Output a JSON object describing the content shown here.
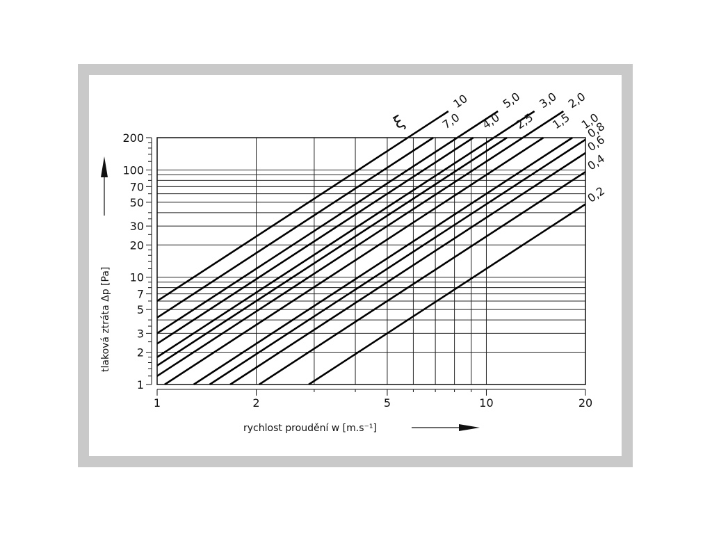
{
  "chart_data": {
    "type": "line",
    "title": "",
    "xlabel": "rychlost proudění w [m.s⁻¹]",
    "ylabel": "tlaková ztráta Δp [Pa]",
    "x_scale": "log",
    "y_scale": "log",
    "xlim": [
      1,
      20
    ],
    "ylim": [
      1,
      200
    ],
    "grid": true,
    "x_ticks": [
      "1",
      "2",
      "5",
      "10",
      "20"
    ],
    "y_ticks": [
      "1",
      "2",
      "3",
      "5",
      "7",
      "10",
      "20",
      "30",
      "50",
      "70",
      "100",
      "200"
    ],
    "series_label": "ξ",
    "formula_coefficient": 0.6,
    "series": [
      {
        "name": "10",
        "xi": 10
      },
      {
        "name": "7,0",
        "xi": 7
      },
      {
        "name": "5,0",
        "xi": 5
      },
      {
        "name": "4,0",
        "xi": 4
      },
      {
        "name": "3,0",
        "xi": 3
      },
      {
        "name": "2,5",
        "xi": 2.5
      },
      {
        "name": "2,0",
        "xi": 2
      },
      {
        "name": "1,5",
        "xi": 1.5
      },
      {
        "name": "1,0",
        "xi": 1
      },
      {
        "name": "0,8",
        "xi": 0.8
      },
      {
        "name": "0,6",
        "xi": 0.6
      },
      {
        "name": "0,4",
        "xi": 0.4
      },
      {
        "name": "0,2",
        "xi": 0.2
      }
    ]
  },
  "colors": {
    "frame": "#c9c9c9",
    "ink": "#111111"
  }
}
